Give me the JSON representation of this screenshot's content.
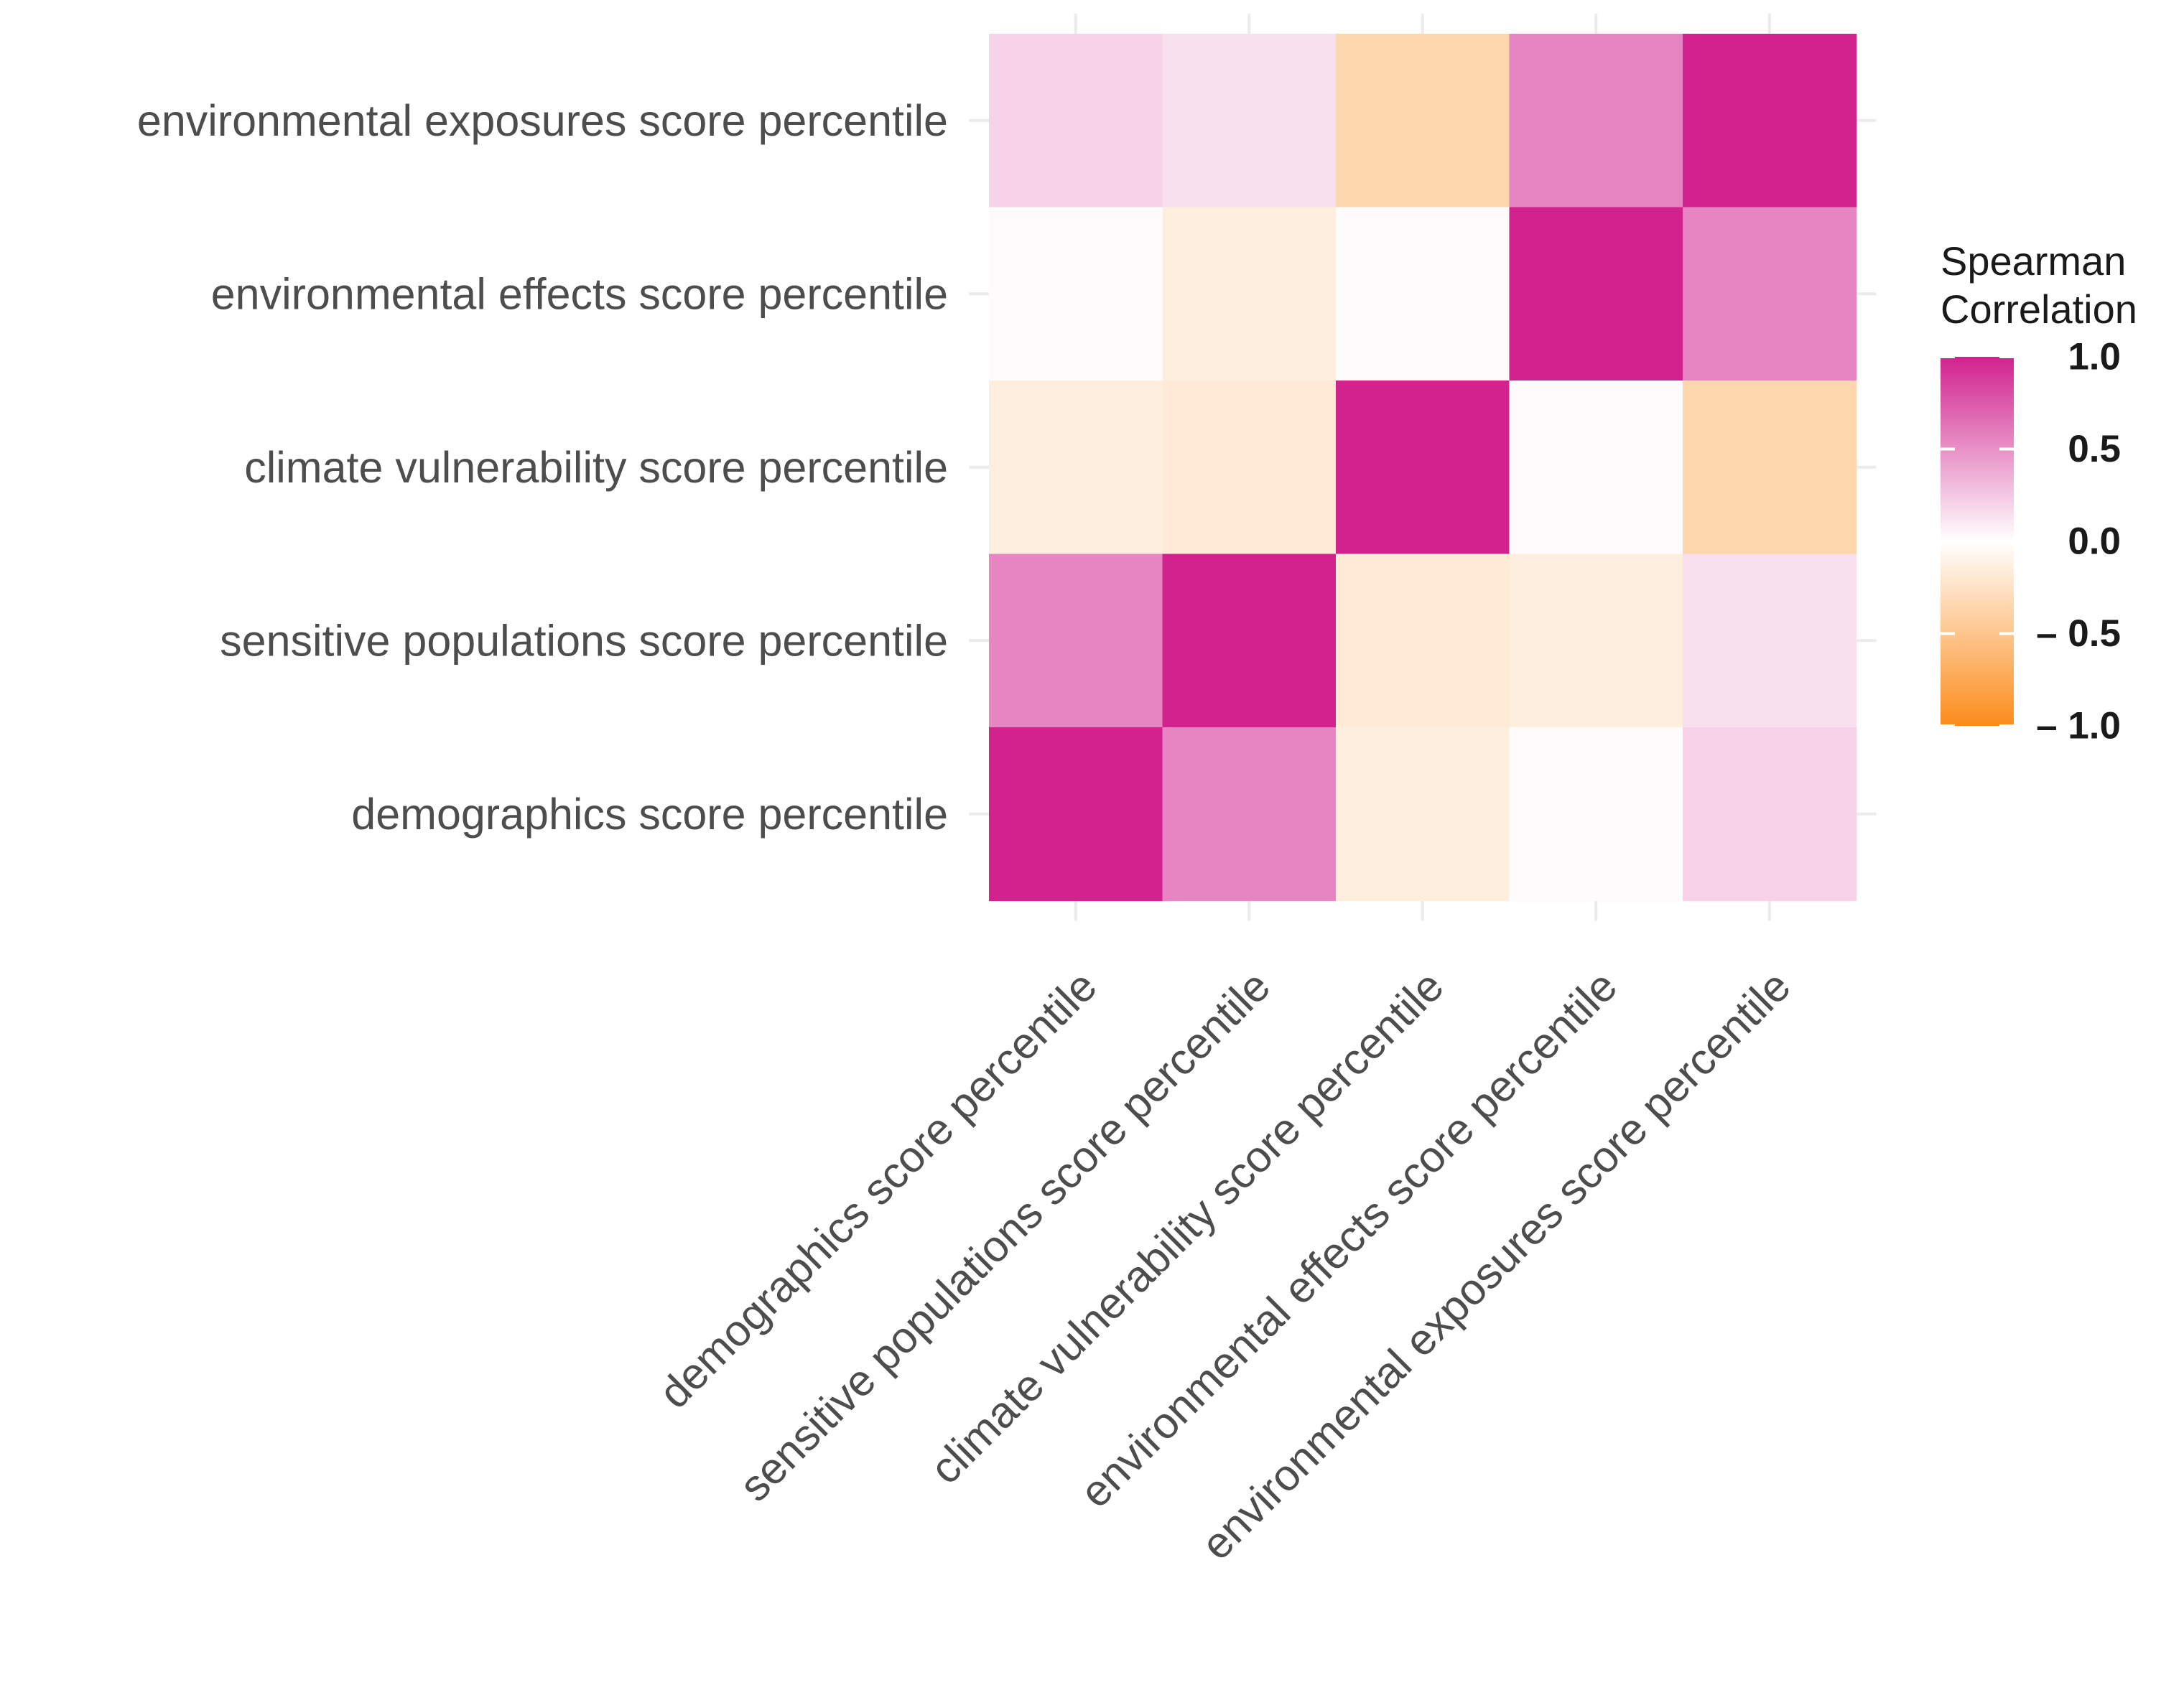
{
  "chart_data": {
    "type": "heatmap",
    "title": "",
    "xlabel": "",
    "ylabel": "",
    "variables": [
      "demographics score percentile",
      "sensitive populations score percentile",
      "climate vulnerability score percentile",
      "environmental effects score percentile",
      "environmental exposures score percentile"
    ],
    "x_categories": [
      "demographics score percentile",
      "sensitive populations score percentile",
      "climate vulnerability score percentile",
      "environmental effects score percentile",
      "environmental exposures score percentile"
    ],
    "y_categories": [
      "environmental exposures score percentile",
      "environmental effects score percentile",
      "climate vulnerability score percentile",
      "sensitive populations score percentile",
      "demographics score percentile"
    ],
    "matrix": [
      [
        1.0,
        0.55,
        -0.15,
        0.02,
        0.2
      ],
      [
        0.55,
        1.0,
        -0.18,
        -0.15,
        0.14
      ],
      [
        -0.15,
        -0.18,
        1.0,
        0.02,
        -0.36
      ],
      [
        0.02,
        -0.15,
        0.02,
        1.0,
        0.55
      ],
      [
        0.2,
        0.14,
        -0.36,
        0.55,
        1.0
      ]
    ],
    "legend": {
      "title_lines": [
        "Spearman",
        "Correlation"
      ],
      "tick_values": [
        1.0,
        0.5,
        0.0,
        -0.5,
        -1.0
      ],
      "tick_labels": [
        "1.0",
        "0.5",
        "0.0",
        "– 0.5",
        "– 1.0"
      ],
      "range": [
        -1,
        1
      ],
      "position": "right"
    },
    "colors": {
      "high": "#D1228E",
      "mid": "#FFFFFF",
      "low": "#FB8C1B",
      "axis_text": "#4D4D4D",
      "legend_text": "#1A1A1A",
      "grid": "#EBEBEB",
      "background": "#FFFFFF"
    }
  }
}
